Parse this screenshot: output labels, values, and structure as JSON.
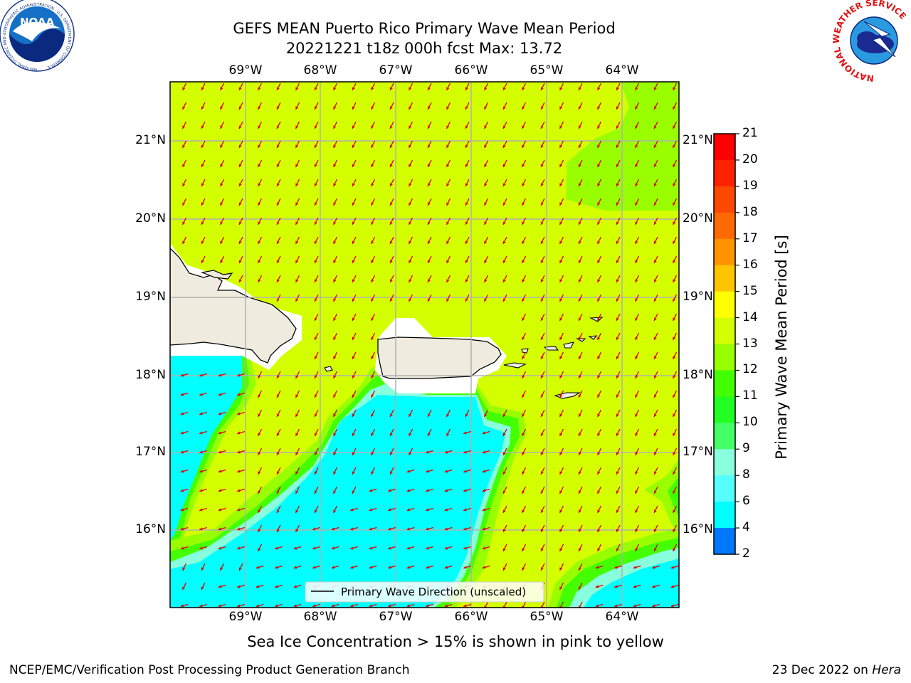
{
  "header": {
    "title_line1": "GEFS MEAN Puerto Rico Primary Wave Mean Period",
    "title_line2": "20221221 t18z 000h fcst   Max: 13.72",
    "noaa_logo_text": "NOAA",
    "noaa_ring_text": "NATIONAL OCEANIC AND ATMOSPHERIC ADMINISTRATION · U.S. DEPARTMENT OF COMMERCE",
    "nws_ring_text": "NATIONAL WEATHER SERVICE"
  },
  "map": {
    "lon_labels": [
      "69°W",
      "68°W",
      "67°W",
      "66°W",
      "65°W",
      "64°W"
    ],
    "lat_labels": [
      "21°N",
      "20°N",
      "19°N",
      "18°N",
      "17°N",
      "16°N"
    ],
    "legend_label": "Primary Wave Direction (unscaled)",
    "arrow_color": "#e00000",
    "ocean_color": "#d4ff00",
    "land_color": "#efecdf"
  },
  "colorbar": {
    "label": "Primary Wave Mean Period [s]",
    "ticks": [
      "21",
      "20",
      "19",
      "18",
      "17",
      "16",
      "15",
      "14",
      "13",
      "12",
      "11",
      "10",
      "9",
      "8",
      "6",
      "4",
      "2"
    ],
    "colors": [
      "#ff0000",
      "#ff2200",
      "#ff4800",
      "#ff6a00",
      "#ff9400",
      "#ffc400",
      "#ffff00",
      "#d4ff00",
      "#99ff00",
      "#44ff00",
      "#22ff22",
      "#44ff66",
      "#88ffdd",
      "#55ffff",
      "#00ffff",
      "#0077ff",
      "#0000ff"
    ]
  },
  "footer": {
    "sea_ice_note": "Sea Ice Concentration > 15% is shown in pink to yellow",
    "branch": "NCEP/EMC/Verification Post Processing Product Generation Branch",
    "date": "23 Dec 2022 on ",
    "machine": "Hera"
  }
}
